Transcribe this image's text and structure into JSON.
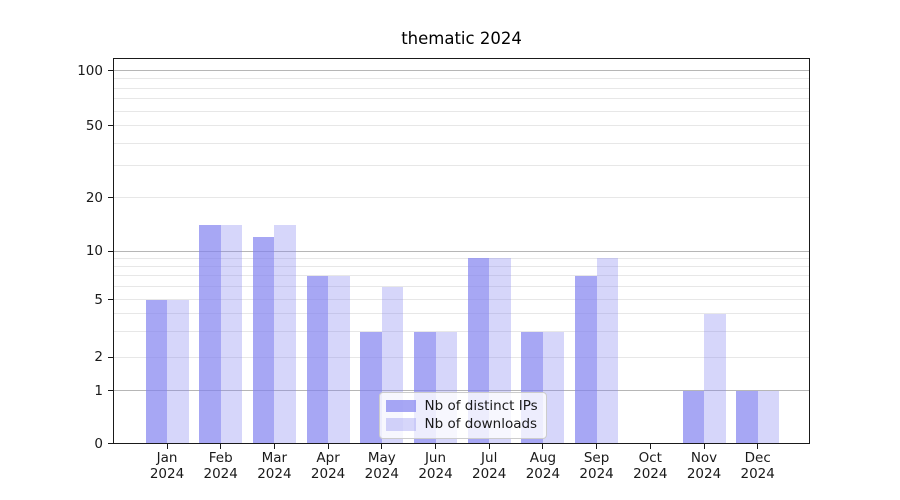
{
  "chart_data": {
    "type": "bar",
    "title": "thematic 2024",
    "categories": [
      "Jan",
      "Feb",
      "Mar",
      "Apr",
      "May",
      "Jun",
      "Jul",
      "Aug",
      "Sep",
      "Oct",
      "Nov",
      "Dec"
    ],
    "category_year_line": "2024",
    "series": [
      {
        "name": "Nb of distinct IPs",
        "color": "rgba(130,130,240,0.7)",
        "values": [
          5,
          14,
          12,
          7,
          3,
          3,
          9,
          3,
          7,
          0,
          1,
          1
        ]
      },
      {
        "name": "Nb of downloads",
        "color": "rgba(130,130,240,0.33)",
        "values": [
          5,
          14,
          14,
          7,
          6,
          3,
          9,
          3,
          9,
          0,
          4,
          1
        ]
      }
    ],
    "yscale": "symlog",
    "ylim": [
      0,
      117
    ],
    "y_ticks": [
      0,
      1,
      2,
      5,
      10,
      20,
      50,
      100
    ],
    "y_major_gridlines": [
      1,
      10,
      100
    ],
    "y_minor_gridlines": [
      2,
      3,
      4,
      5,
      6,
      7,
      8,
      9,
      20,
      30,
      40,
      50,
      60,
      70,
      80,
      90
    ],
    "grid": {
      "major_color": "#b6b6b6",
      "minor_color": "#e7e7e7"
    },
    "legend": {
      "entries": [
        "Nb of distinct IPs",
        "Nb of downloads"
      ],
      "position": "lower center"
    }
  }
}
